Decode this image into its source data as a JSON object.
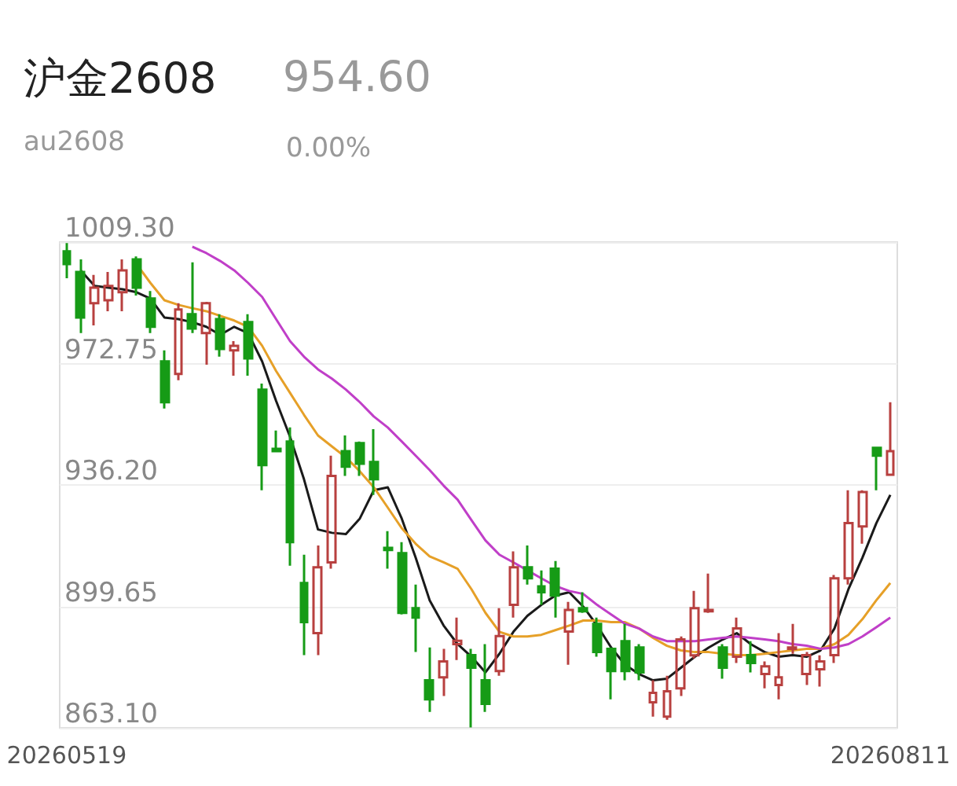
{
  "chart_data": {
    "type": "candlestick",
    "title": "沪金2608",
    "subtitle": "au2608",
    "annotations": [
      "954.60",
      "0.00%"
    ],
    "categories": [
      "20260519",
      null,
      null,
      null,
      null,
      null,
      null,
      null,
      null,
      null,
      null,
      null,
      null,
      null,
      null,
      null,
      null,
      null,
      null,
      null,
      null,
      null,
      null,
      null,
      null,
      null,
      null,
      null,
      null,
      null,
      null,
      null,
      null,
      null,
      null,
      null,
      null,
      null,
      null,
      null,
      null,
      null,
      null,
      null,
      null,
      null,
      null,
      null,
      null,
      null,
      null,
      null,
      null,
      null,
      null,
      null,
      null,
      null,
      null,
      "20260811"
    ],
    "ohlc": [
      [
        1006.5,
        1009.0,
        998.4,
        1002.7
      ],
      [
        1000.3,
        1004.1,
        981.9,
        986.6
      ],
      [
        990.9,
        999.4,
        984.2,
        995.6
      ],
      [
        991.8,
        1000.3,
        988.5,
        996.1
      ],
      [
        994.2,
        1004.1,
        988.5,
        1000.8
      ],
      [
        1004.1,
        1005.0,
        993.2,
        995.6
      ],
      [
        992.3,
        994.6,
        981.9,
        983.8
      ],
      [
        973.4,
        976.7,
        959.2,
        961.1
      ],
      [
        969.6,
        990.9,
        967.7,
        989.0
      ],
      [
        987.6,
        1003.2,
        981.9,
        983.3
      ],
      [
        981.9,
        991.3,
        972.4,
        990.9
      ],
      [
        986.1,
        987.6,
        974.8,
        977.1
      ],
      [
        976.7,
        979.5,
        969.1,
        978.1
      ],
      [
        985.2,
        987.6,
        969.1,
        974.3
      ],
      [
        964.9,
        966.7,
        934.6,
        942.2
      ],
      [
        947.1,
        952.6,
        946.0,
        946.4
      ],
      [
        949.3,
        953.5,
        911.9,
        919.0
      ],
      [
        906.7,
        915.2,
        885.0,
        894.9
      ],
      [
        891.6,
        918.0,
        885.0,
        911.4
      ],
      [
        912.9,
        945.0,
        911.0,
        938.9
      ],
      [
        946.4,
        951.1,
        938.9,
        941.7
      ],
      [
        948.8,
        949.3,
        938.9,
        942.6
      ],
      [
        943.1,
        953.0,
        933.2,
        937.9
      ],
      [
        917.3,
        922.3,
        911.0,
        916.6
      ],
      [
        915.7,
        919.0,
        897.2,
        897.7
      ],
      [
        899.1,
        906.2,
        885.9,
        896.3
      ],
      [
        877.4,
        887.3,
        867.9,
        871.7
      ],
      [
        878.3,
        886.9,
        872.7,
        883.1
      ],
      [
        888.3,
        896.3,
        883.5,
        889.3
      ],
      [
        885.0,
        886.9,
        863.2,
        881.2
      ],
      [
        877.4,
        888.3,
        867.9,
        870.3
      ],
      [
        880.2,
        899.1,
        878.8,
        890.7
      ],
      [
        900.1,
        916.2,
        896.3,
        911.4
      ],
      [
        911.4,
        918.0,
        906.2,
        908.1
      ],
      [
        905.7,
        910.5,
        900.1,
        903.9
      ],
      [
        911.0,
        913.3,
        896.3,
        902.9
      ],
      [
        892.1,
        901.0,
        882.1,
        898.6
      ],
      [
        899.1,
        903.9,
        897.7,
        898.2
      ],
      [
        894.4,
        896.3,
        884.5,
        885.9
      ],
      [
        886.9,
        887.3,
        871.7,
        880.2
      ],
      [
        889.2,
        894.4,
        877.4,
        880.2
      ],
      [
        887.3,
        888.3,
        877.4,
        879.8
      ],
      [
        870.8,
        877.4,
        866.5,
        873.6
      ],
      [
        866.5,
        878.8,
        865.5,
        874.1
      ],
      [
        875.0,
        890.6,
        872.7,
        889.7
      ],
      [
        884.9,
        904.3,
        884.0,
        899.1
      ],
      [
        898.2,
        909.5,
        897.7,
        898.6
      ],
      [
        887.3,
        888.3,
        877.9,
        881.2
      ],
      [
        884.5,
        896.3,
        882.6,
        893.0
      ],
      [
        885.0,
        889.2,
        879.8,
        882.6
      ],
      [
        879.3,
        883.1,
        875.0,
        881.6
      ],
      [
        876.0,
        891.6,
        871.7,
        878.3
      ],
      [
        886.9,
        894.4,
        885.4,
        887.3
      ],
      [
        879.3,
        885.9,
        876.0,
        885.0
      ],
      [
        880.7,
        884.9,
        875.5,
        883.1
      ],
      [
        885.0,
        909.1,
        882.6,
        908.1
      ],
      [
        908.1,
        934.6,
        906.2,
        924.7
      ],
      [
        923.7,
        934.6,
        918.5,
        934.1
      ],
      [
        947.4,
        947.4,
        934.6,
        945.0
      ],
      [
        939.3,
        961.1,
        939.3,
        946.4
      ]
    ],
    "colors": [
      "#169b16",
      "#169b16",
      "#b8403f",
      "#b8403f",
      "#b8403f",
      "#169b16",
      "#169b16",
      "#169b16",
      "#b8403f",
      "#169b16",
      "#b8403f",
      "#169b16",
      "#b8403f",
      "#169b16",
      "#169b16",
      "#169b16",
      "#169b16",
      "#169b16",
      "#b8403f",
      "#b8403f",
      "#169b16",
      "#169b16",
      "#169b16",
      "#169b16",
      "#169b16",
      "#169b16",
      "#169b16",
      "#b8403f",
      "#b8403f",
      "#169b16",
      "#169b16",
      "#b8403f",
      "#b8403f",
      "#169b16",
      "#169b16",
      "#169b16",
      "#b8403f",
      "#169b16",
      "#169b16",
      "#169b16",
      "#169b16",
      "#169b16",
      "#b8403f",
      "#b8403f",
      "#b8403f",
      "#b8403f",
      "#b8403f",
      "#169b16",
      "#b8403f",
      "#169b16",
      "#b8403f",
      "#b8403f",
      "#b8403f",
      "#b8403f",
      "#b8403f",
      "#b8403f",
      "#b8403f",
      "#b8403f",
      "#169b16",
      "#b8403f"
    ],
    "series": [
      {
        "type": "line",
        "color": "#1a1a1a",
        "values": [
          null,
          1000.8,
          996.1,
          995.6,
          995.1,
          994.2,
          992.3,
          986.6,
          986.1,
          985.2,
          983.8,
          981.4,
          983.8,
          981.9,
          973.4,
          961.5,
          950.7,
          937.9,
          922.8,
          921.8,
          921.4,
          926.1,
          934.6,
          935.5,
          926.1,
          914.3,
          901.5,
          893.9,
          888.3,
          884.5,
          879.8,
          885.4,
          892.0,
          896.8,
          900.1,
          902.9,
          903.9,
          899.6,
          893.9,
          887.3,
          882.1,
          879.3,
          877.4,
          877.9,
          881.2,
          884.5,
          887.3,
          889.7,
          891.6,
          888.3,
          885.9,
          884.5,
          885.0,
          884.5,
          886.4,
          893.0,
          904.8,
          914.3,
          924.7,
          933.2
        ]
      },
      {
        "type": "line",
        "color": "#e6a028",
        "values": [
          null,
          null,
          null,
          null,
          null,
          1002.7,
          997.0,
          991.8,
          990.4,
          989.4,
          988.5,
          987.1,
          985.7,
          983.8,
          978.1,
          970.5,
          963.9,
          957.3,
          951.1,
          947.8,
          944.5,
          940.3,
          935.5,
          929.4,
          923.2,
          918.5,
          914.7,
          912.9,
          911.0,
          904.8,
          897.7,
          892.0,
          890.6,
          890.6,
          891.1,
          892.5,
          893.9,
          895.4,
          895.4,
          894.9,
          894.9,
          893.0,
          890.2,
          887.8,
          886.4,
          885.9,
          885.9,
          885.4,
          885.0,
          885.0,
          885.4,
          885.9,
          886.4,
          886.9,
          886.9,
          888.3,
          891.1,
          895.8,
          901.5,
          906.7
        ]
      },
      {
        "type": "line",
        "color": "#c03fc8",
        "values": [
          null,
          null,
          null,
          null,
          null,
          null,
          null,
          null,
          null,
          1007.9,
          1006.0,
          1003.6,
          1000.8,
          997.0,
          992.8,
          986.1,
          979.5,
          974.8,
          971.0,
          968.2,
          964.9,
          961.1,
          956.8,
          953.5,
          949.3,
          945.0,
          940.7,
          936.0,
          931.8,
          925.6,
          919.5,
          915.2,
          912.9,
          910.5,
          908.1,
          905.8,
          904.3,
          903.4,
          900.1,
          897.2,
          894.4,
          893.0,
          890.6,
          889.2,
          889.2,
          889.2,
          889.7,
          890.2,
          890.6,
          890.2,
          889.7,
          889.2,
          888.3,
          887.8,
          886.9,
          887.3,
          888.3,
          890.6,
          893.4,
          896.3
        ]
      }
    ],
    "ylim": [
      863.1,
      1009.3
    ],
    "yticks": [
      {
        "value": 863.1,
        "label": "863.10"
      },
      {
        "value": 899.65,
        "label": "899.65"
      },
      {
        "value": 936.2,
        "label": "936.20"
      },
      {
        "value": 972.75,
        "label": "972.75"
      },
      {
        "value": 1009.3,
        "label": "1009.30"
      }
    ],
    "grid": "y",
    "marker": "none"
  }
}
